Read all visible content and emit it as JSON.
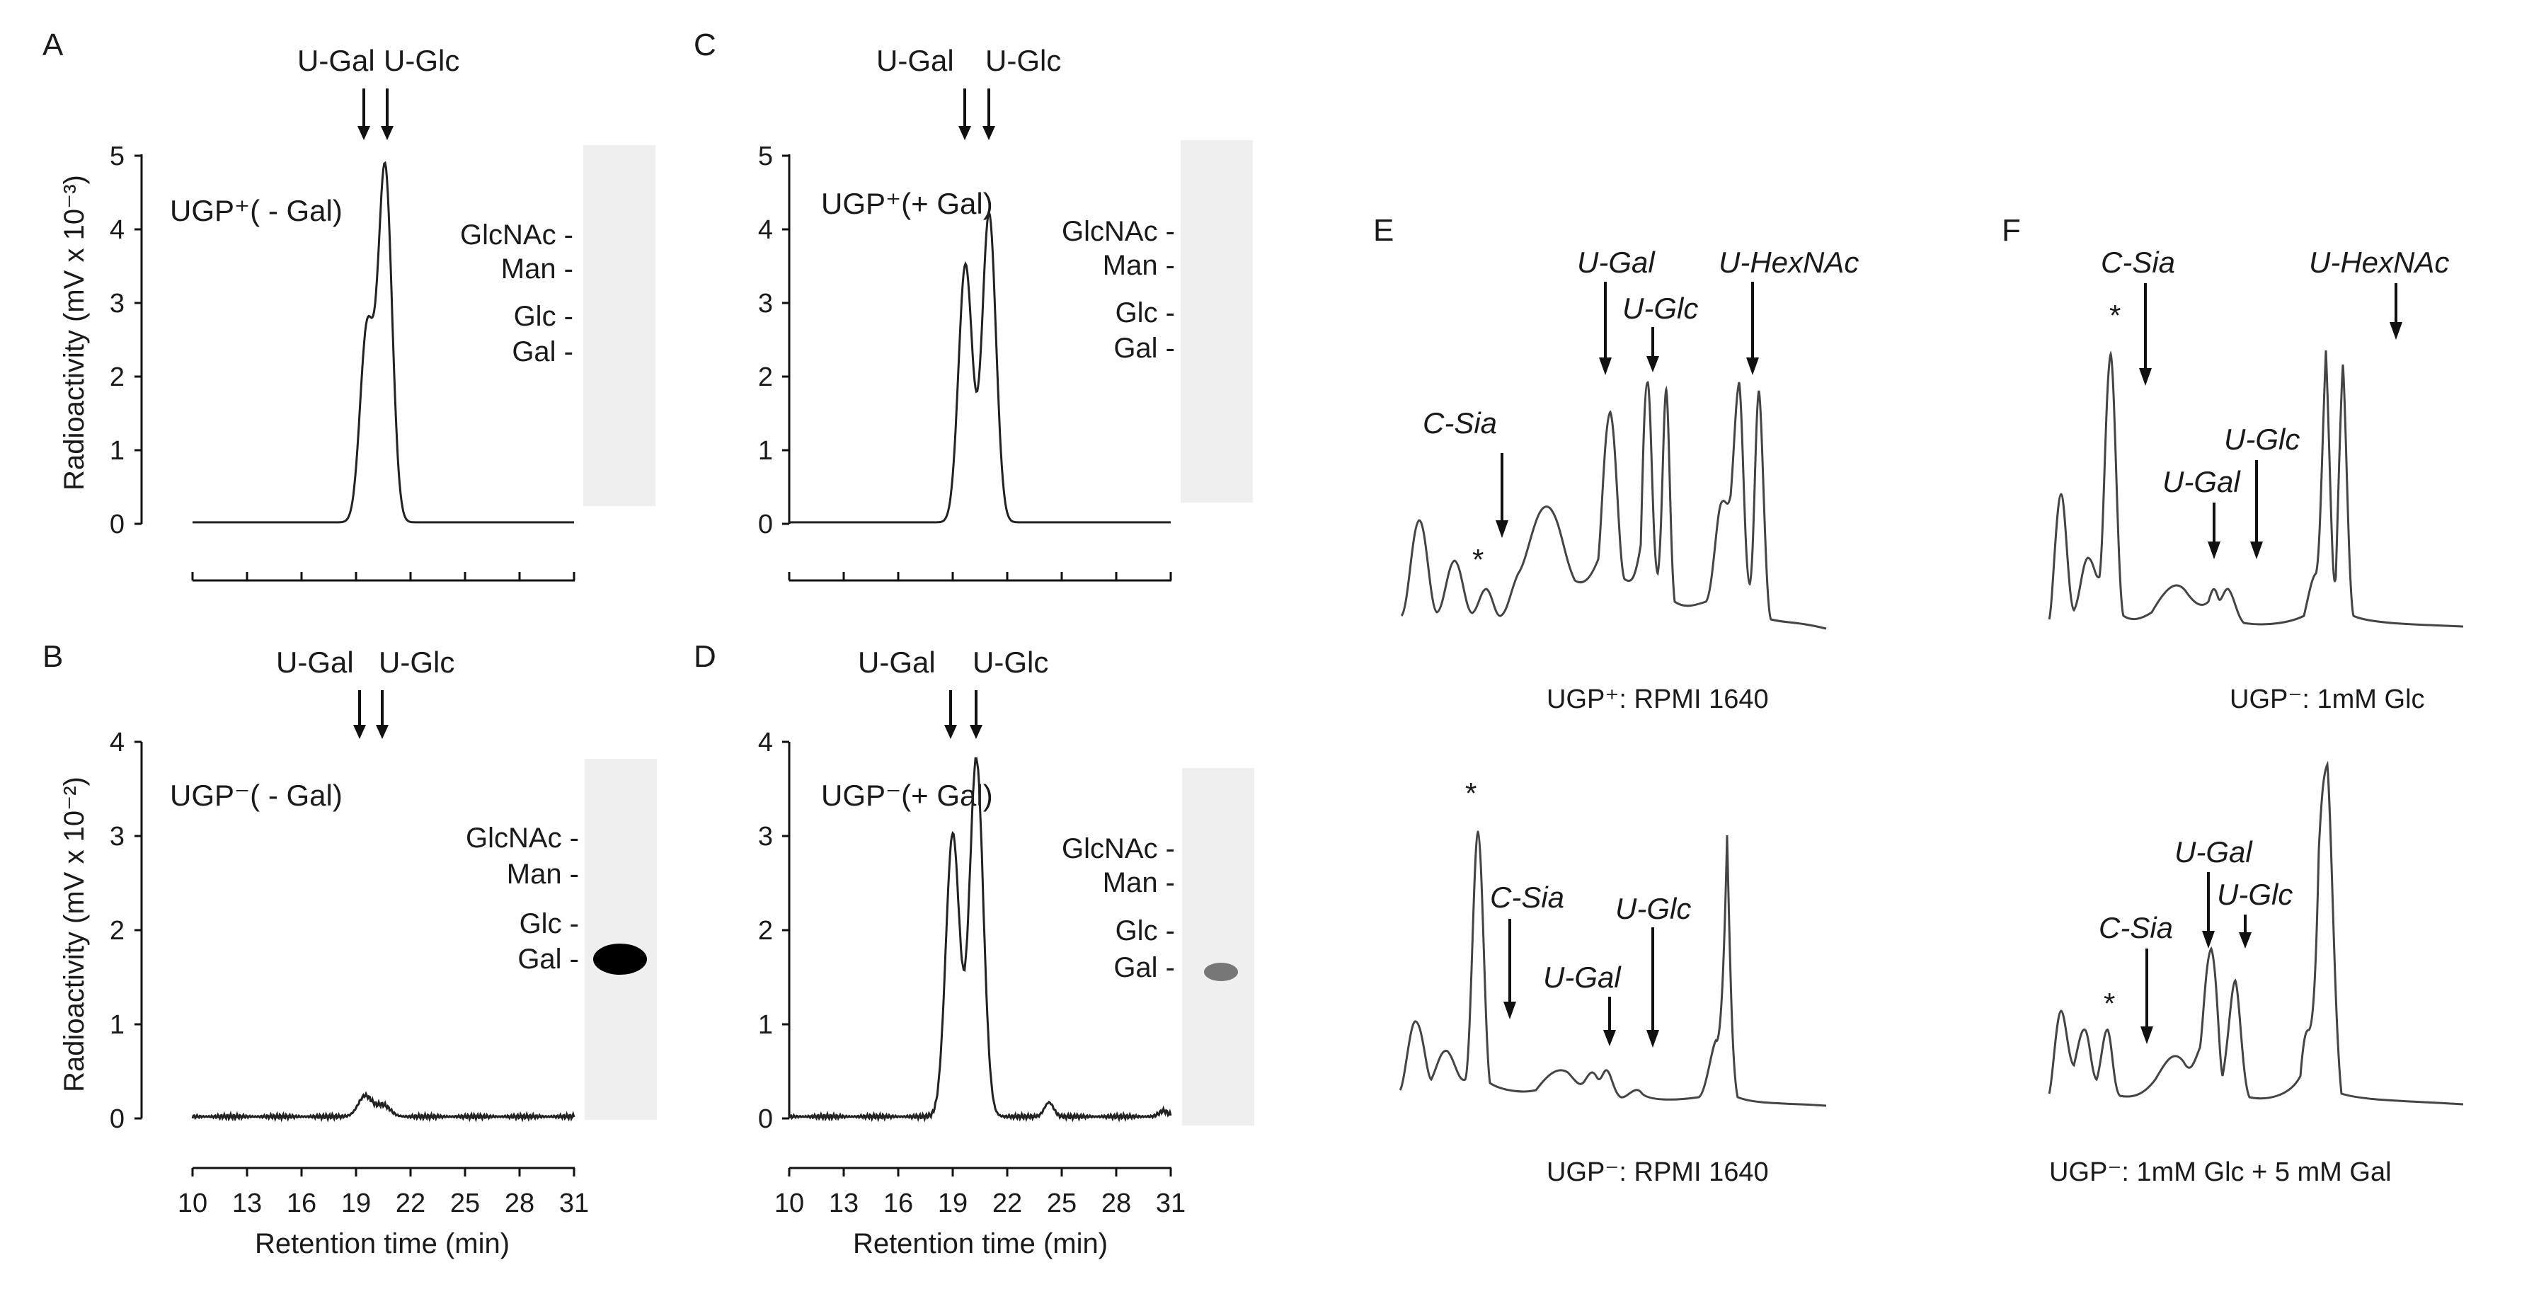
{
  "panels": [
    {
      "id": "A",
      "label": "A",
      "condition": "UGP⁺( - Gal)",
      "arrows": [
        "U-Gal",
        "U-Glc"
      ],
      "y_label": "Radioactivity (mV x 10⁻³)",
      "y_ticks": [
        "0",
        "1",
        "2",
        "3",
        "4",
        "5"
      ],
      "x_ticks": [],
      "gel_markers": [
        "GlcNAc -",
        "Man -",
        "Glc -",
        "Gal -"
      ],
      "gel_spot": false
    },
    {
      "id": "B",
      "label": "B",
      "condition": "UGP⁻( - Gal)",
      "arrows": [
        "U-Gal",
        "U-Glc"
      ],
      "y_label": "Radioactivity (mV x 10⁻²)",
      "y_ticks": [
        "0",
        "1",
        "2",
        "3",
        "4"
      ],
      "x_ticks": [
        "10",
        "13",
        "16",
        "19",
        "22",
        "25",
        "28",
        "31"
      ],
      "x_label": "Retention time (min)",
      "gel_markers": [
        "GlcNAc -",
        "Man -",
        "Glc -",
        "Gal -"
      ],
      "gel_spot": "strong"
    },
    {
      "id": "C",
      "label": "C",
      "condition": "UGP⁺(+ Gal)",
      "arrows": [
        "U-Gal",
        "U-Glc"
      ],
      "y_ticks": [
        "0",
        "1",
        "2",
        "3",
        "4",
        "5"
      ],
      "x_ticks": [],
      "gel_markers": [
        "GlcNAc -",
        "Man -",
        "Glc -",
        "Gal -"
      ],
      "gel_spot": false
    },
    {
      "id": "D",
      "label": "D",
      "condition": "UGP⁻(+ Gal)",
      "arrows": [
        "U-Gal",
        "U-Glc"
      ],
      "y_ticks": [
        "0",
        "1",
        "2",
        "3",
        "4"
      ],
      "x_ticks": [
        "10",
        "13",
        "16",
        "19",
        "22",
        "25",
        "28",
        "31"
      ],
      "x_label": "Retention time (min)",
      "gel_markers": [
        "GlcNAc -",
        "Man -",
        "Glc -",
        "Gal -"
      ],
      "gel_spot": "weak"
    }
  ],
  "profiles": {
    "E_label": "E",
    "F_label": "F",
    "E_top_caption": "UGP⁺: RPMI 1640",
    "E_bottom_caption": "UGP⁻: RPMI 1640",
    "F_top_caption": "UGP⁻: 1mM Glc",
    "F_bottom_caption": "UGP⁻: 1mM Glc + 5 mM Gal",
    "labels": {
      "c_sia": "C-Sia",
      "u_gal": "U-Gal",
      "u_glc": "U-Glc",
      "u_hexnac": "U-HexNAc",
      "star": "*"
    }
  },
  "chart_data": [
    {
      "panel": "A",
      "type": "line",
      "x": [
        10,
        31
      ],
      "x_unit": "Retention time (min)",
      "xlim": [
        10,
        31
      ],
      "ylim": [
        0,
        5
      ],
      "ylabel": "Radioactivity (mV x 10⁻³)",
      "baseline": 0.02,
      "peaks": [
        {
          "label": "U-Gal",
          "x": 19.6,
          "y": 2.6
        },
        {
          "label": "U-Glc",
          "x": 20.6,
          "y": 4.8
        }
      ],
      "gel_standards": [
        "GlcNAc",
        "Man",
        "Glc",
        "Gal"
      ]
    },
    {
      "panel": "B",
      "type": "line",
      "xlim": [
        10,
        31
      ],
      "ylim": [
        0,
        4
      ],
      "xlabel": "Retention time (min)",
      "ylabel": "Radioactivity (mV x 10⁻²)",
      "baseline": 0.02,
      "peaks": [
        {
          "label": "U-Gal",
          "x": 19.5,
          "y": 0.22
        },
        {
          "label": "U-Glc",
          "x": 20.5,
          "y": 0.12
        }
      ],
      "gel_standards": [
        "GlcNAc",
        "Man",
        "Glc",
        "Gal"
      ],
      "gel_spot_at": "Gal"
    },
    {
      "panel": "C",
      "type": "line",
      "xlim": [
        10,
        31
      ],
      "ylim": [
        0,
        5
      ],
      "baseline": 0.02,
      "peaks": [
        {
          "label": "U-Gal",
          "x": 19.7,
          "y": 3.5
        },
        {
          "label": "U-Glc",
          "x": 21.0,
          "y": 4.2
        }
      ],
      "gel_standards": [
        "GlcNAc",
        "Man",
        "Glc",
        "Gal"
      ]
    },
    {
      "panel": "D",
      "type": "line",
      "xlim": [
        10,
        31
      ],
      "ylim": [
        0,
        4
      ],
      "xlabel": "Retention time (min)",
      "baseline": 0.02,
      "peaks": [
        {
          "label": "U-Gal",
          "x": 19.0,
          "y": 3.0
        },
        {
          "label": "U-Glc",
          "x": 20.3,
          "y": 3.8
        },
        {
          "label": "",
          "x": 24.3,
          "y": 0.15
        },
        {
          "label": "",
          "x": 30.6,
          "y": 0.06
        }
      ],
      "gel_standards": [
        "GlcNAc",
        "Man",
        "Glc",
        "Gal"
      ],
      "gel_spot_at": "Gal"
    }
  ]
}
